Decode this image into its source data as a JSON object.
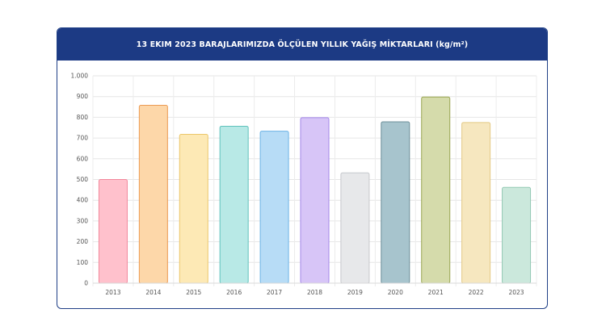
{
  "chart_data": {
    "type": "bar",
    "title": "13 EKIM 2023 BARAJLARIMIZDA ÖLÇÜLEN YILLIK YAĞIŞ MİKTARLARI (kg/m²)",
    "xlabel": "",
    "ylabel": "",
    "categories": [
      "2013",
      "2014",
      "2015",
      "2016",
      "2017",
      "2018",
      "2019",
      "2020",
      "2021",
      "2022",
      "2023"
    ],
    "values": [
      500,
      858,
      718,
      757,
      733,
      798,
      532,
      778,
      898,
      775,
      462
    ],
    "ylim": [
      0,
      1000
    ],
    "yticks": [
      0,
      100,
      200,
      300,
      400,
      500,
      600,
      700,
      800,
      900,
      1000
    ],
    "ytick_labels": [
      "0",
      "100",
      "200",
      "300",
      "400",
      "500",
      "600",
      "700",
      "800",
      "900",
      "1.000"
    ],
    "grid": true,
    "legend": "none",
    "fill_colors": [
      "#ffc1cc",
      "#fdd7a9",
      "#fde9b5",
      "#b8e9e6",
      "#b7dcf6",
      "#d7c5f7",
      "#e7e8ea",
      "#a7c4cd",
      "#d5dbab",
      "#f6e7bf",
      "#cbe8dc"
    ],
    "stroke_colors": [
      "#f2879b",
      "#eb9a53",
      "#ecc76a",
      "#5fc2bc",
      "#6bb3e6",
      "#a386ea",
      "#c6c8cc",
      "#6b8e99",
      "#9aa653",
      "#e3c985",
      "#94c9b4"
    ]
  }
}
